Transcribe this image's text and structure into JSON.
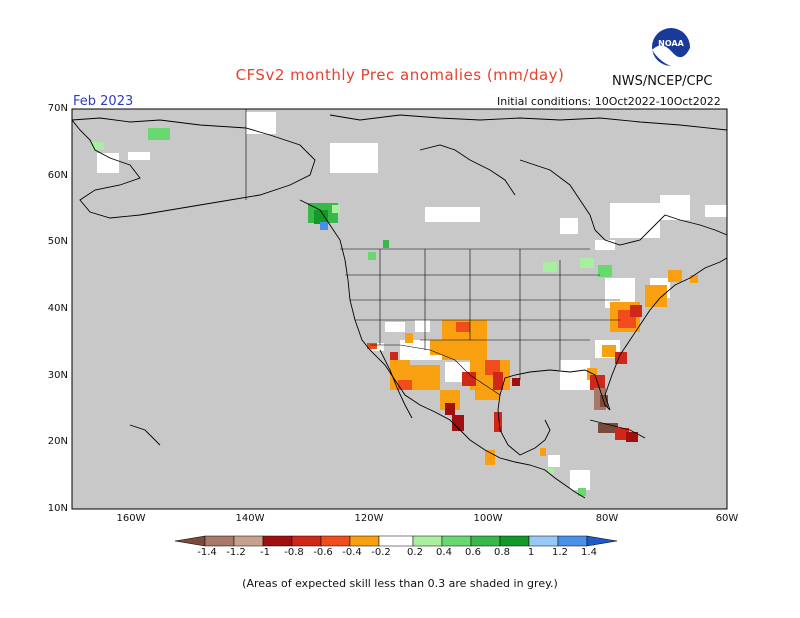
{
  "title": "CFSv2 monthly Prec anomalies (mm/day)",
  "agency": "NWS/NCEP/CPC",
  "logo_text": "NOAA",
  "forecast_month": "Feb 2023",
  "initial_conditions": "Initial conditions: 10Oct2022-10Oct2022",
  "lat_labels": [
    "70N",
    "60N",
    "50N",
    "40N",
    "30N",
    "20N",
    "10N"
  ],
  "lon_labels": [
    "160W",
    "140W",
    "120W",
    "100W",
    "80W",
    "60W"
  ],
  "colorbar": {
    "labels": [
      "-1.4",
      "-1.2",
      "-1",
      "-0.8",
      "-0.6",
      "-0.4",
      "-0.2",
      "0.2",
      "0.4",
      "0.6",
      "0.8",
      "1",
      "1.2",
      "1.4"
    ],
    "colors": [
      "#7a4a3c",
      "#a87868",
      "#c8a090",
      "#a01010",
      "#d02818",
      "#f04c1c",
      "#f8a010",
      "#ffffff",
      "#a8f0a0",
      "#6ad870",
      "#38b848",
      "#129a28",
      "#98c8f8",
      "#4a90e8",
      "#1e5ac8"
    ]
  },
  "note": "(Areas of expected skill less than 0.3 are shaded in grey.)",
  "colors": {
    "land_grey": "#c8c8c8",
    "ocean_grey": "#c8c8c8",
    "title": "#e8402e",
    "month": "#2c3cc8"
  }
}
